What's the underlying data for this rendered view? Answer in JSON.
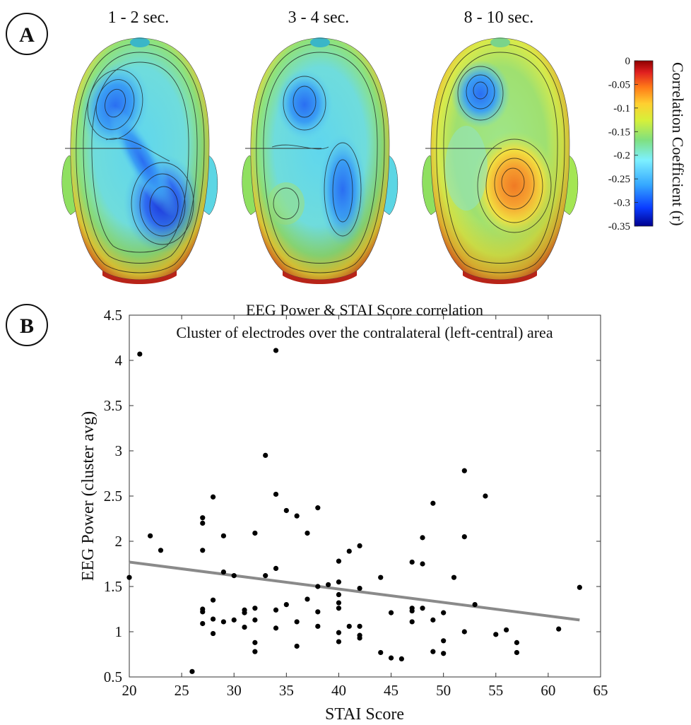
{
  "panel_a": {
    "label": "A",
    "maps": [
      {
        "title": "1 - 2 sec."
      },
      {
        "title": "3 - 4 sec."
      },
      {
        "title": "8 - 10 sec."
      }
    ],
    "colorbar": {
      "label": "Correlation Coefficient (r)",
      "ticks": [
        "0",
        "-0.05",
        "-0.1",
        "-0.15",
        "-0.2",
        "-0.25",
        "-0.3",
        "-0.35"
      ],
      "range": [
        -0.35,
        0
      ],
      "colormap": [
        "#00008f",
        "#0a3cff",
        "#35a8ff",
        "#7df0ff",
        "#7fe080",
        "#d6f03a",
        "#ffd030",
        "#ff7a18",
        "#e02020",
        "#8e0000"
      ]
    }
  },
  "panel_b": {
    "label": "B",
    "chart_data": {
      "type": "scatter",
      "title": "EEG Power & STAI Score correlation",
      "subtitle": "Cluster of electrodes over the contralateral (left-central) area",
      "xlabel": "STAI Score",
      "ylabel": "EEG Power (cluster avg)",
      "xlim": [
        20,
        65
      ],
      "ylim": [
        0.5,
        4.5
      ],
      "xticks": [
        20,
        25,
        30,
        35,
        40,
        45,
        50,
        55,
        60,
        65
      ],
      "yticks": [
        0.5,
        1,
        1.5,
        2,
        2.5,
        3,
        3.5,
        4,
        4.5
      ],
      "ytick_labels": [
        "0.5",
        "1",
        "1.5",
        "2",
        "2.5",
        "3",
        "3.5",
        "4",
        "4.5"
      ],
      "points": [
        [
          20,
          1.6
        ],
        [
          21,
          4.07
        ],
        [
          22,
          2.06
        ],
        [
          23,
          1.9
        ],
        [
          26,
          0.56
        ],
        [
          27,
          2.26
        ],
        [
          27,
          2.2
        ],
        [
          27,
          1.9
        ],
        [
          27,
          1.25
        ],
        [
          27,
          1.22
        ],
        [
          27,
          1.09
        ],
        [
          28,
          2.49
        ],
        [
          28,
          1.35
        ],
        [
          28,
          1.14
        ],
        [
          28,
          0.98
        ],
        [
          29,
          2.06
        ],
        [
          29,
          1.66
        ],
        [
          29,
          1.11
        ],
        [
          30,
          1.62
        ],
        [
          30,
          1.13
        ],
        [
          31,
          1.24
        ],
        [
          31,
          1.21
        ],
        [
          31,
          1.05
        ],
        [
          32,
          2.09
        ],
        [
          32,
          1.26
        ],
        [
          32,
          1.13
        ],
        [
          32,
          0.88
        ],
        [
          32,
          0.78
        ],
        [
          33,
          2.95
        ],
        [
          33,
          1.62
        ],
        [
          34,
          4.11
        ],
        [
          34,
          2.52
        ],
        [
          34,
          1.7
        ],
        [
          34,
          1.24
        ],
        [
          34,
          1.04
        ],
        [
          35,
          2.34
        ],
        [
          35,
          1.3
        ],
        [
          36,
          2.28
        ],
        [
          36,
          1.11
        ],
        [
          36,
          0.84
        ],
        [
          37,
          2.09
        ],
        [
          37,
          1.36
        ],
        [
          38,
          2.37
        ],
        [
          38,
          1.5
        ],
        [
          38,
          1.22
        ],
        [
          38,
          1.06
        ],
        [
          39,
          1.52
        ],
        [
          40,
          1.78
        ],
        [
          40,
          1.55
        ],
        [
          40,
          1.41
        ],
        [
          40,
          1.32
        ],
        [
          40,
          1.26
        ],
        [
          40,
          0.99
        ],
        [
          40,
          0.89
        ],
        [
          41,
          1.89
        ],
        [
          41,
          1.06
        ],
        [
          42,
          1.95
        ],
        [
          42,
          1.48
        ],
        [
          42,
          1.06
        ],
        [
          42,
          0.96
        ],
        [
          42,
          0.93
        ],
        [
          44,
          1.6
        ],
        [
          44,
          0.77
        ],
        [
          45,
          1.21
        ],
        [
          45,
          0.71
        ],
        [
          46,
          0.7
        ],
        [
          47,
          1.77
        ],
        [
          47,
          1.26
        ],
        [
          47,
          1.23
        ],
        [
          47,
          1.11
        ],
        [
          48,
          2.04
        ],
        [
          48,
          1.75
        ],
        [
          48,
          1.26
        ],
        [
          49,
          2.42
        ],
        [
          49,
          1.13
        ],
        [
          49,
          0.78
        ],
        [
          50,
          1.21
        ],
        [
          50,
          0.9
        ],
        [
          50,
          0.76
        ],
        [
          51,
          1.6
        ],
        [
          52,
          2.78
        ],
        [
          52,
          2.05
        ],
        [
          52,
          1.0
        ],
        [
          53,
          1.3
        ],
        [
          54,
          2.5
        ],
        [
          55,
          0.97
        ],
        [
          56,
          1.02
        ],
        [
          57,
          0.88
        ],
        [
          57,
          0.77
        ],
        [
          61,
          1.03
        ],
        [
          63,
          1.49
        ]
      ],
      "fit_line": {
        "x": [
          20,
          63
        ],
        "y": [
          1.77,
          1.13
        ]
      }
    }
  }
}
